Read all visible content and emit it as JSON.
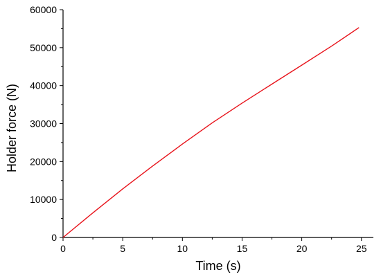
{
  "chart_data": {
    "type": "line",
    "title": "",
    "xlabel": "Time (s)",
    "ylabel": "Holder force (N)",
    "xlim": [
      0,
      26
    ],
    "ylim": [
      0,
      60000
    ],
    "grid": false,
    "x_ticks": [
      0,
      5,
      10,
      15,
      20,
      25
    ],
    "y_ticks": [
      0,
      10000,
      20000,
      30000,
      40000,
      50000,
      60000
    ],
    "x_tick_labels": [
      "0",
      "5",
      "10",
      "15",
      "20",
      "25"
    ],
    "y_tick_labels": [
      "0",
      "10000",
      "20000",
      "30000",
      "40000",
      "50000",
      "60000"
    ],
    "series": [
      {
        "color": "#e8141c",
        "x": [
          0,
          2.5,
          5,
          7.5,
          10,
          12.5,
          15,
          17.5,
          20,
          22.5,
          24.8
        ],
        "y": [
          0,
          6500,
          12800,
          18800,
          24600,
          30200,
          35400,
          40400,
          45400,
          50400,
          55300
        ]
      }
    ]
  }
}
